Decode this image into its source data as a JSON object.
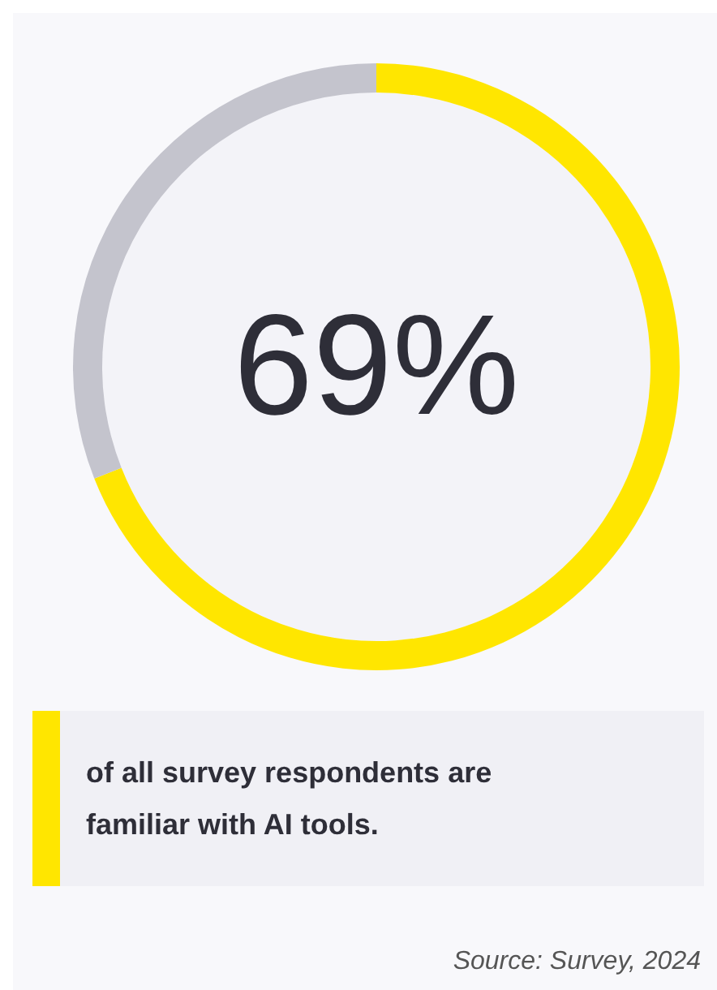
{
  "chart_data": {
    "type": "donut",
    "title": "of all survey respondents are familiar with AI tools.",
    "categories": [
      null,
      null
    ],
    "values": [
      69,
      31
    ],
    "colors": [
      "#ffe600",
      "#c4c4cd"
    ],
    "value_labels": [
      "69%",
      null
    ],
    "annotations": [
      "Source: Survey, 2024"
    ]
  }
}
